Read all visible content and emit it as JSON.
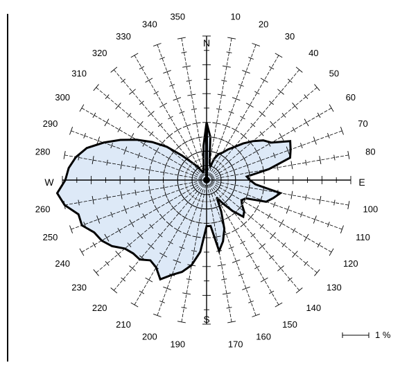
{
  "chart_data": {
    "type": "polar-area",
    "title": "",
    "unit_label": "1 %",
    "cardinals": {
      "north": "N",
      "east": "E",
      "south": "S",
      "west": "W"
    },
    "sector_labels": [
      {
        "angle": 10,
        "label": "10"
      },
      {
        "angle": 20,
        "label": "20"
      },
      {
        "angle": 30,
        "label": "30"
      },
      {
        "angle": 40,
        "label": "40"
      },
      {
        "angle": 50,
        "label": "50"
      },
      {
        "angle": 60,
        "label": "60"
      },
      {
        "angle": 70,
        "label": "70"
      },
      {
        "angle": 80,
        "label": "80"
      },
      {
        "angle": 100,
        "label": "100"
      },
      {
        "angle": 110,
        "label": "110"
      },
      {
        "angle": 120,
        "label": "120"
      },
      {
        "angle": 130,
        "label": "130"
      },
      {
        "angle": 140,
        "label": "140"
      },
      {
        "angle": 150,
        "label": "150"
      },
      {
        "angle": 160,
        "label": "160"
      },
      {
        "angle": 170,
        "label": "170"
      },
      {
        "angle": 190,
        "label": "190"
      },
      {
        "angle": 200,
        "label": "200"
      },
      {
        "angle": 210,
        "label": "210"
      },
      {
        "angle": 220,
        "label": "220"
      },
      {
        "angle": 230,
        "label": "230"
      },
      {
        "angle": 240,
        "label": "240"
      },
      {
        "angle": 250,
        "label": "250"
      },
      {
        "angle": 260,
        "label": "260"
      },
      {
        "angle": 280,
        "label": "280"
      },
      {
        "angle": 290,
        "label": "290"
      },
      {
        "angle": 300,
        "label": "300"
      },
      {
        "angle": 310,
        "label": "310"
      },
      {
        "angle": 320,
        "label": "320"
      },
      {
        "angle": 330,
        "label": "330"
      },
      {
        "angle": 340,
        "label": "340"
      },
      {
        "angle": 350,
        "label": "350"
      }
    ],
    "directions": [
      0,
      5,
      10,
      15,
      20,
      25,
      30,
      35,
      40,
      45,
      50,
      55,
      60,
      65,
      70,
      75,
      80,
      85,
      90,
      95,
      100,
      105,
      110,
      115,
      120,
      125,
      130,
      135,
      140,
      145,
      150,
      155,
      160,
      165,
      170,
      175,
      180,
      185,
      190,
      195,
      200,
      205,
      210,
      215,
      220,
      225,
      230,
      235,
      240,
      245,
      250,
      255,
      260,
      265,
      270,
      275,
      280,
      285,
      290,
      295,
      300,
      305,
      310,
      315,
      320,
      325,
      330,
      335,
      340,
      345,
      350,
      355
    ],
    "values": [
      2.0,
      1.5,
      0.6,
      0.5,
      0.8,
      1.0,
      1.1,
      1.3,
      1.5,
      1.8,
      2.1,
      2.4,
      2.6,
      3.2,
      3.1,
      3.0,
      2.2,
      1.4,
      1.5,
      1.7,
      2.6,
      2.4,
      2.2,
      1.5,
      1.4,
      1.5,
      1.7,
      1.8,
      1.4,
      1.0,
      0.7,
      1.2,
      1.8,
      2.2,
      2.5,
      1.6,
      1.6,
      2.5,
      3.0,
      3.3,
      3.5,
      3.8,
      3.5,
      3.4,
      3.6,
      3.6,
      3.7,
      4.0,
      4.2,
      4.3,
      4.6,
      4.6,
      5.0,
      5.2,
      4.9,
      4.8,
      4.6,
      4.3,
      3.8,
      3.3,
      2.8,
      2.3,
      1.8,
      1.2,
      0.8,
      0.6,
      0.4,
      0.3,
      0.3,
      0.4,
      0.6,
      1.2
    ],
    "rmax": 5.0,
    "radial_ticks": [
      0.5,
      1.0,
      1.5,
      2.0,
      2.5,
      3.0,
      3.5,
      4.0,
      4.5,
      5.0
    ],
    "rings": [
      0.75,
      1.5
    ],
    "colors": {
      "fill": "#dde9f7",
      "outline": "#000000",
      "axis": "#000000",
      "ring": "#808080"
    }
  }
}
